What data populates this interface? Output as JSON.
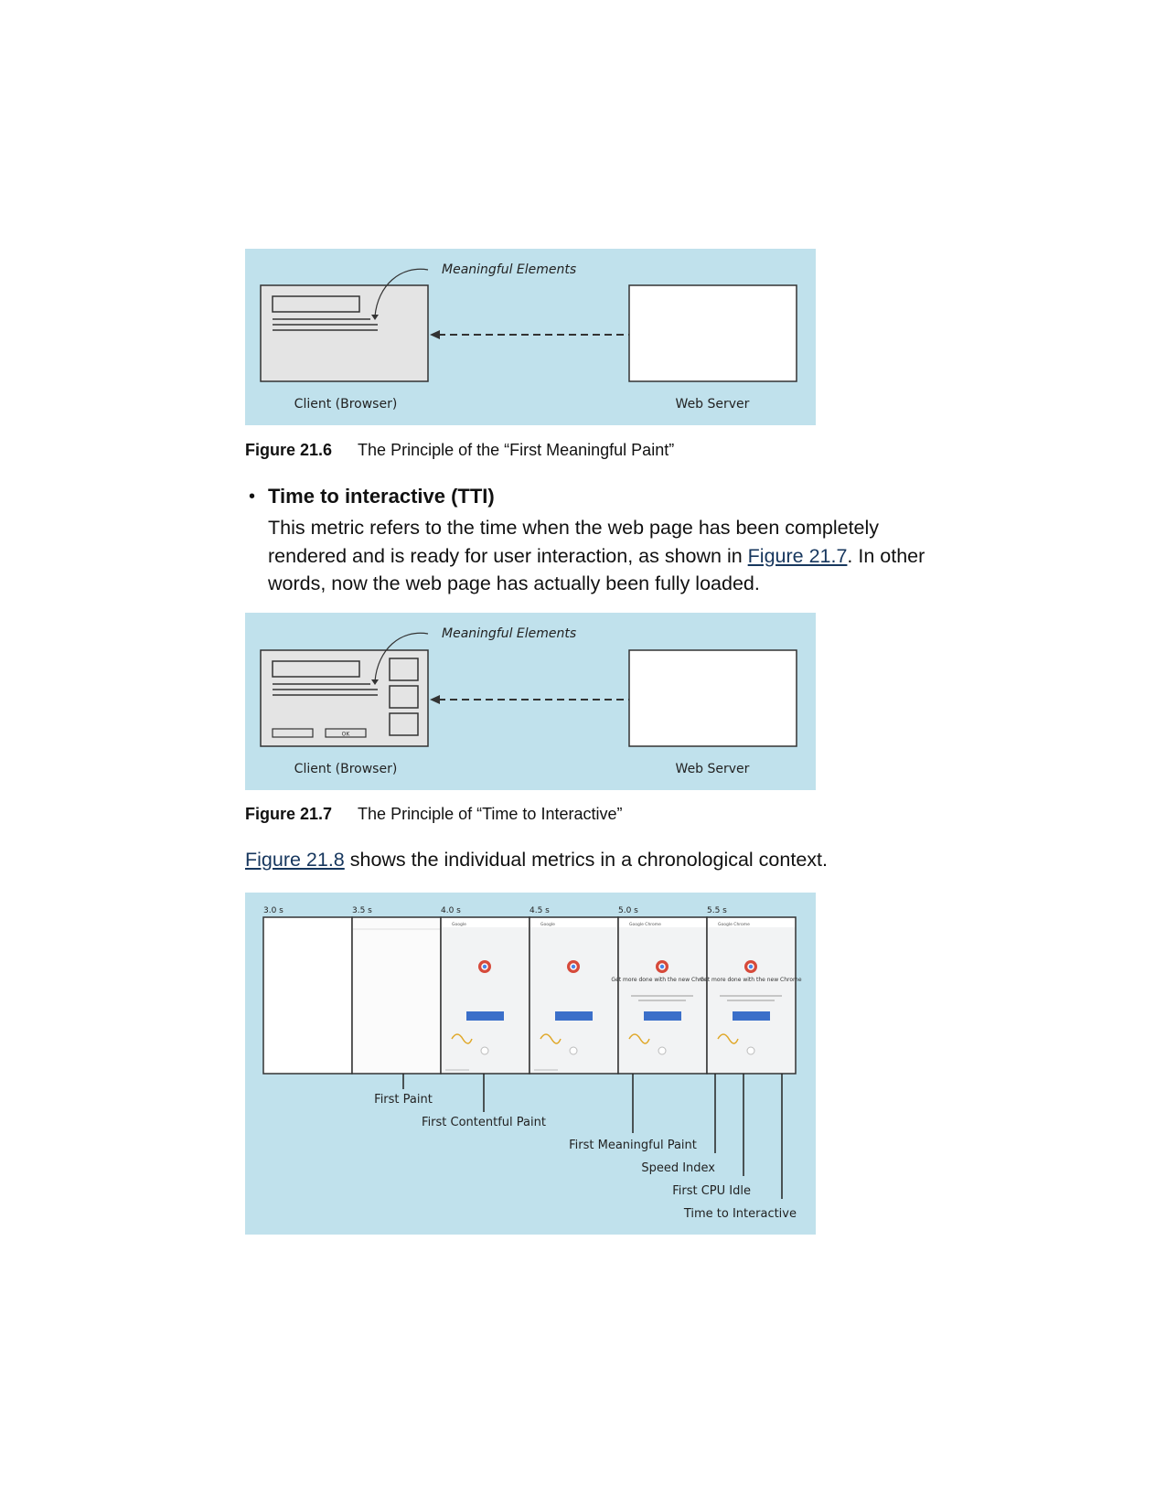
{
  "figure_21_6": {
    "label_meaningful": "Meaningful Elements",
    "label_client": "Client (Browser)",
    "label_server": "Web Server",
    "caption_num": "Figure 21.6",
    "caption_text": "The Principle of the “First Meaningful Paint”"
  },
  "bullet": {
    "heading": "Time to interactive (TTI)",
    "text_1": "This metric refers to the time when the web page has been completely rendered and is ready for user interaction, as shown in ",
    "link": "Figure 21.7",
    "text_2": ". In other words, now the web page has actually been fully loaded."
  },
  "figure_21_7": {
    "label_meaningful": "Meaningful Elements",
    "label_client": "Client (Browser)",
    "label_server": "Web Server",
    "ok_label": "OK",
    "caption_num": "Figure 21.7",
    "caption_text": "The Principle of “Time to Interactive”"
  },
  "paragraph": {
    "link": "Figure 21.8",
    "text": " shows the individual metrics in a chronological context."
  },
  "figure_21_8": {
    "times": [
      "3.0 s",
      "3.5 s",
      "4.0 s",
      "4.5 s",
      "5.0 s",
      "5.5 s"
    ],
    "tab_titles": [
      "Google",
      "Google",
      "Google Chrome",
      "Google Chrome"
    ],
    "headline": "Get more done with the new Chrome",
    "metrics": [
      "First Paint",
      "First Contentful Paint",
      "First Meaningful Paint",
      "Speed Index",
      "First CPU Idle",
      "Time to Interactive"
    ]
  }
}
